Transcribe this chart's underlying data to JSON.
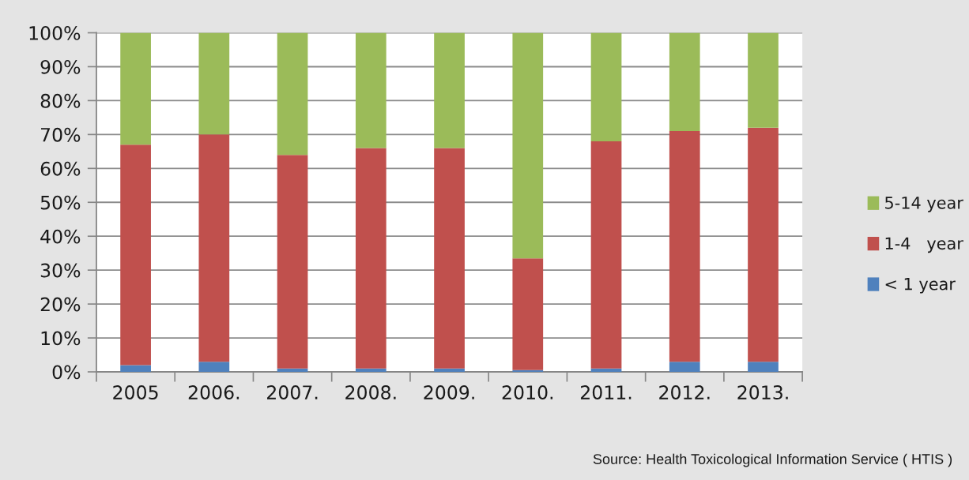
{
  "chart_data": {
    "type": "bar",
    "stacked": true,
    "categories": [
      "2005",
      "2006.",
      "2007.",
      "2008.",
      "2009.",
      "2010.",
      "2011.",
      "2012.",
      "2013."
    ],
    "series": [
      {
        "name": "< 1 year",
        "color": "#4f81bd",
        "values": [
          2,
          3,
          1,
          1,
          1,
          0.5,
          1,
          3,
          3
        ]
      },
      {
        "name": "1-4   year",
        "color": "#c0504d",
        "values": [
          65,
          67,
          63,
          65,
          65,
          33,
          67,
          68,
          69
        ]
      },
      {
        "name": "5-14 year",
        "color": "#9bbb59",
        "values": [
          33,
          30,
          36,
          34,
          34,
          66.5,
          32,
          29,
          28
        ]
      }
    ],
    "ylim": [
      0,
      100
    ],
    "yticks": [
      {
        "value": 0,
        "label": "0%"
      },
      {
        "value": 10,
        "label": "10%"
      },
      {
        "value": 20,
        "label": "20%"
      },
      {
        "value": 30,
        "label": "30%"
      },
      {
        "value": 40,
        "label": "40%"
      },
      {
        "value": 50,
        "label": "50%"
      },
      {
        "value": 60,
        "label": "60%"
      },
      {
        "value": 70,
        "label": "70%"
      },
      {
        "value": 80,
        "label": "80%"
      },
      {
        "value": 90,
        "label": "90%"
      },
      {
        "value": 100,
        "label": "100%"
      }
    ],
    "grid": "y",
    "legend": "right",
    "annotations": [
      "Source: Health Toxicological Information Service ( HTIS )"
    ]
  }
}
